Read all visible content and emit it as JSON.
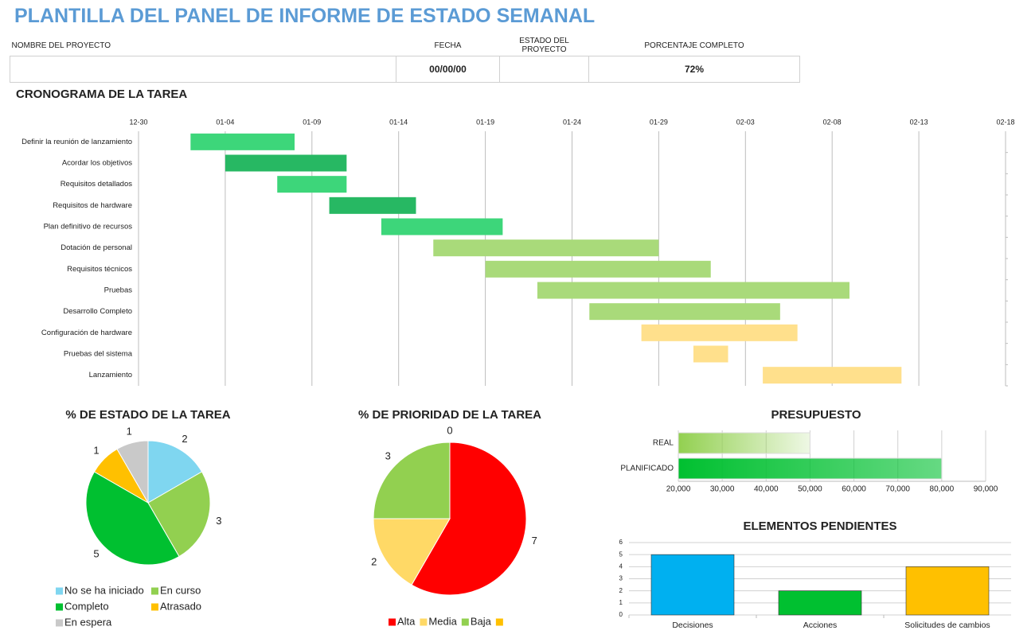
{
  "title": "PLANTILLA DEL PANEL DE INFORME DE ESTADO SEMANAL",
  "project_info": {
    "columns": [
      {
        "label": "NOMBRE DEL PROYECTO"
      },
      {
        "label": "FECHA",
        "value": "00/00/00"
      },
      {
        "label": "ESTADO DEL PROYECTO"
      },
      {
        "label": "PORCENTAJE COMPLETO",
        "value": "72%"
      }
    ]
  },
  "chart_data": [
    {
      "type": "gantt",
      "title": "CRONOGRAMA DE LA TAREA",
      "xlim": [
        0,
        50
      ],
      "xticks": [
        {
          "value": 0,
          "label": "12-30"
        },
        {
          "value": 5,
          "label": "01-04"
        },
        {
          "value": 10,
          "label": "01-09"
        },
        {
          "value": 15,
          "label": "01-14"
        },
        {
          "value": 20,
          "label": "01-19"
        },
        {
          "value": 25,
          "label": "01-24"
        },
        {
          "value": 30,
          "label": "01-29"
        },
        {
          "value": 35,
          "label": "02-03"
        },
        {
          "value": 40,
          "label": "02-08"
        },
        {
          "value": 45,
          "label": "02-13"
        },
        {
          "value": 50,
          "label": "02-18"
        }
      ],
      "grid": true,
      "tasks": [
        {
          "name": "Definir la reunión de lanzamiento",
          "start": 3,
          "end": 9,
          "color": "#3dd67a"
        },
        {
          "name": "Acordar los objetivos",
          "start": 5,
          "end": 12,
          "color": "#27b863"
        },
        {
          "name": "Requisitos detallados",
          "start": 8,
          "end": 12,
          "color": "#3dd67a"
        },
        {
          "name": "Requisitos de hardware",
          "start": 11,
          "end": 16,
          "color": "#27b863"
        },
        {
          "name": "Plan definitivo de recursos",
          "start": 14,
          "end": 21,
          "color": "#3dd67a"
        },
        {
          "name": "Dotación de personal",
          "start": 17,
          "end": 30,
          "color": "#a9da7a"
        },
        {
          "name": "Requisitos técnicos",
          "start": 20,
          "end": 33,
          "color": "#a9da7a"
        },
        {
          "name": "Pruebas",
          "start": 23,
          "end": 41,
          "color": "#a9da7a"
        },
        {
          "name": "Desarrollo Completo",
          "start": 26,
          "end": 37,
          "color": "#a9da7a"
        },
        {
          "name": "Configuración de hardware",
          "start": 29,
          "end": 38,
          "color": "#ffe08c"
        },
        {
          "name": "Pruebas del sistema",
          "start": 32,
          "end": 34,
          "color": "#ffe08c"
        },
        {
          "name": "Lanzamiento",
          "start": 36,
          "end": 44,
          "color": "#ffe08c"
        }
      ]
    },
    {
      "type": "pie",
      "title": "% DE ESTADO DE LA TAREA",
      "categories": [
        "No se ha iniciado",
        "En curso",
        "Completo",
        "Atrasado",
        "En espera"
      ],
      "values": [
        2,
        3,
        5,
        1,
        1
      ],
      "colors": [
        "#7fd6f0",
        "#92d050",
        "#00c030",
        "#ffc000",
        "#c9c9c9"
      ]
    },
    {
      "type": "pie",
      "title": "% DE PRIORIDAD DE LA TAREA",
      "categories": [
        "Alta",
        "Media",
        "Baja",
        null
      ],
      "values": [
        7,
        2,
        3,
        0
      ],
      "colors": [
        "#ff0000",
        "#ffd966",
        "#92d050",
        "#ffc000"
      ]
    },
    {
      "type": "bar",
      "orientation": "horizontal",
      "title": "PRESUPUESTO",
      "categories": [
        "REAL",
        "PLANIFICADO"
      ],
      "values": [
        50000,
        80000
      ],
      "colors": [
        "#92d050",
        "#00c030"
      ],
      "xlim": [
        20000,
        90000
      ],
      "xticks": [
        {
          "value": 20000,
          "label": "20,000"
        },
        {
          "value": 30000,
          "label": "30,000"
        },
        {
          "value": 40000,
          "label": "40,000"
        },
        {
          "value": 50000,
          "label": "50,000"
        },
        {
          "value": 60000,
          "label": "60,000"
        },
        {
          "value": 70000,
          "label": "70,000"
        },
        {
          "value": 80000,
          "label": "80,000"
        },
        {
          "value": 90000,
          "label": "90,000"
        }
      ],
      "grid": true
    },
    {
      "type": "bar",
      "orientation": "vertical",
      "title": "ELEMENTOS PENDIENTES",
      "categories": [
        "Decisiones",
        "Acciones",
        "Solicitudes de cambios"
      ],
      "values": [
        5,
        2,
        4
      ],
      "colors": [
        "#00b0f0",
        "#00c030",
        "#ffc000"
      ],
      "ylim": [
        0,
        6
      ],
      "yticks": [
        0,
        1,
        2,
        3,
        4,
        5,
        6
      ],
      "grid": true
    }
  ]
}
